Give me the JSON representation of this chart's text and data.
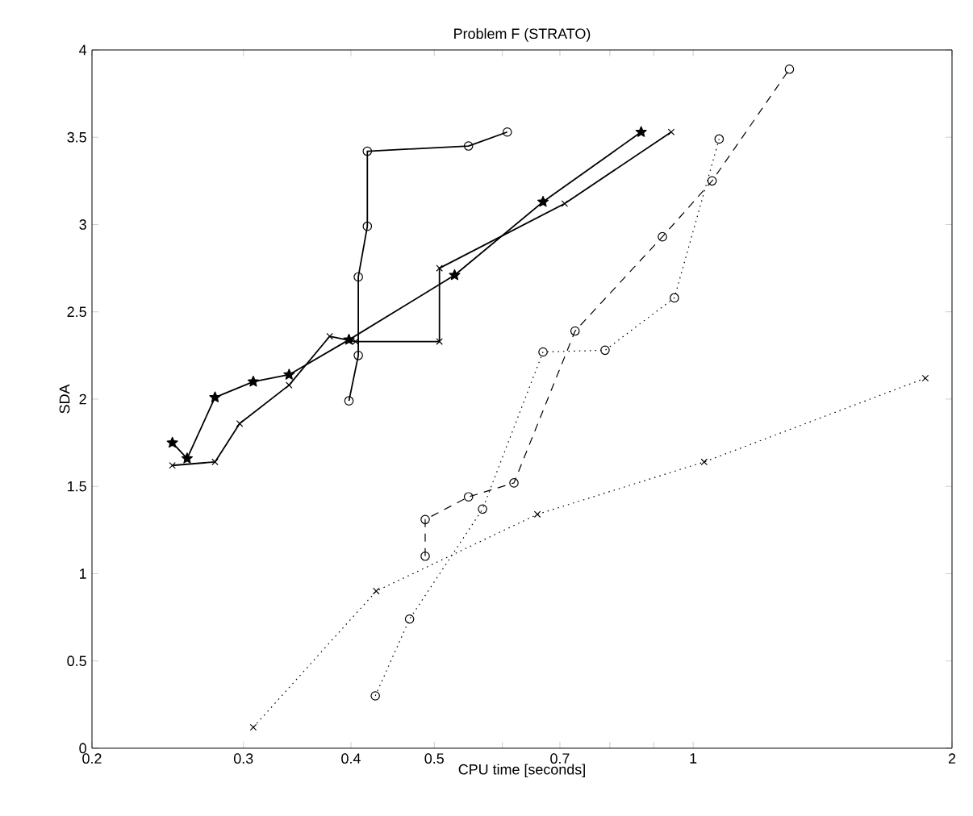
{
  "chart_data": {
    "type": "line",
    "title": "Problem  F (STRATO)",
    "xlabel": "CPU time [seconds]",
    "ylabel": "SDA",
    "log": "x",
    "xlim": [
      0.2,
      2
    ],
    "xticks": [
      0.2,
      0.3,
      0.4,
      0.5,
      {
        "value": 0.6,
        "label": null
      },
      0.7,
      {
        "value": 0.8,
        "label": null
      },
      {
        "value": 0.9,
        "label": null
      },
      1,
      2
    ],
    "ylim": [
      0,
      4
    ],
    "yticks": [
      0,
      0.5,
      1,
      1.5,
      2,
      2.5,
      3,
      3.5,
      4
    ],
    "grid": false,
    "series": [
      {
        "color": "#000000",
        "line_style": "solid",
        "marker": "circle",
        "x": [
          0.398,
          0.408,
          0.408,
          0.418,
          0.418,
          0.548,
          0.608
        ],
        "values": [
          1.99,
          2.25,
          2.7,
          2.99,
          3.42,
          3.45,
          3.53
        ]
      },
      {
        "color": "#000000",
        "line_style": "solid",
        "marker": "star",
        "x": [
          0.248,
          0.258,
          0.278,
          0.308,
          0.339,
          0.398,
          0.528,
          0.669,
          0.87
        ],
        "values": [
          1.75,
          1.66,
          2.01,
          2.1,
          2.14,
          2.34,
          2.71,
          3.13,
          3.53
        ]
      },
      {
        "color": "#000000",
        "line_style": "solid",
        "marker": "cross",
        "x": [
          0.248,
          0.278,
          0.297,
          0.339,
          0.378,
          0.405,
          0.507,
          0.507,
          0.709,
          0.943
        ],
        "values": [
          1.62,
          1.64,
          1.86,
          2.08,
          2.36,
          2.33,
          2.33,
          2.75,
          3.12,
          3.53
        ]
      },
      {
        "color": "#000000",
        "line_style": "dashed",
        "marker": "circle",
        "x": [
          0.488,
          0.488,
          0.548,
          0.619,
          0.729,
          0.921,
          1.052,
          1.294
        ],
        "values": [
          1.1,
          1.31,
          1.44,
          1.52,
          2.39,
          2.93,
          3.25,
          3.89
        ]
      },
      {
        "color": "#000000",
        "line_style": "dotted",
        "marker": "circle",
        "x": [
          0.427,
          0.468,
          0.569,
          0.669,
          0.79,
          0.951,
          1.072
        ],
        "values": [
          0.3,
          0.74,
          1.37,
          2.27,
          2.28,
          2.58,
          3.49
        ]
      },
      {
        "color": "#000000",
        "line_style": "dotted",
        "marker": "cross",
        "x": [
          0.308,
          0.428,
          0.659,
          1.03,
          1.862
        ],
        "values": [
          0.12,
          0.9,
          1.34,
          1.64,
          2.12
        ]
      }
    ]
  }
}
